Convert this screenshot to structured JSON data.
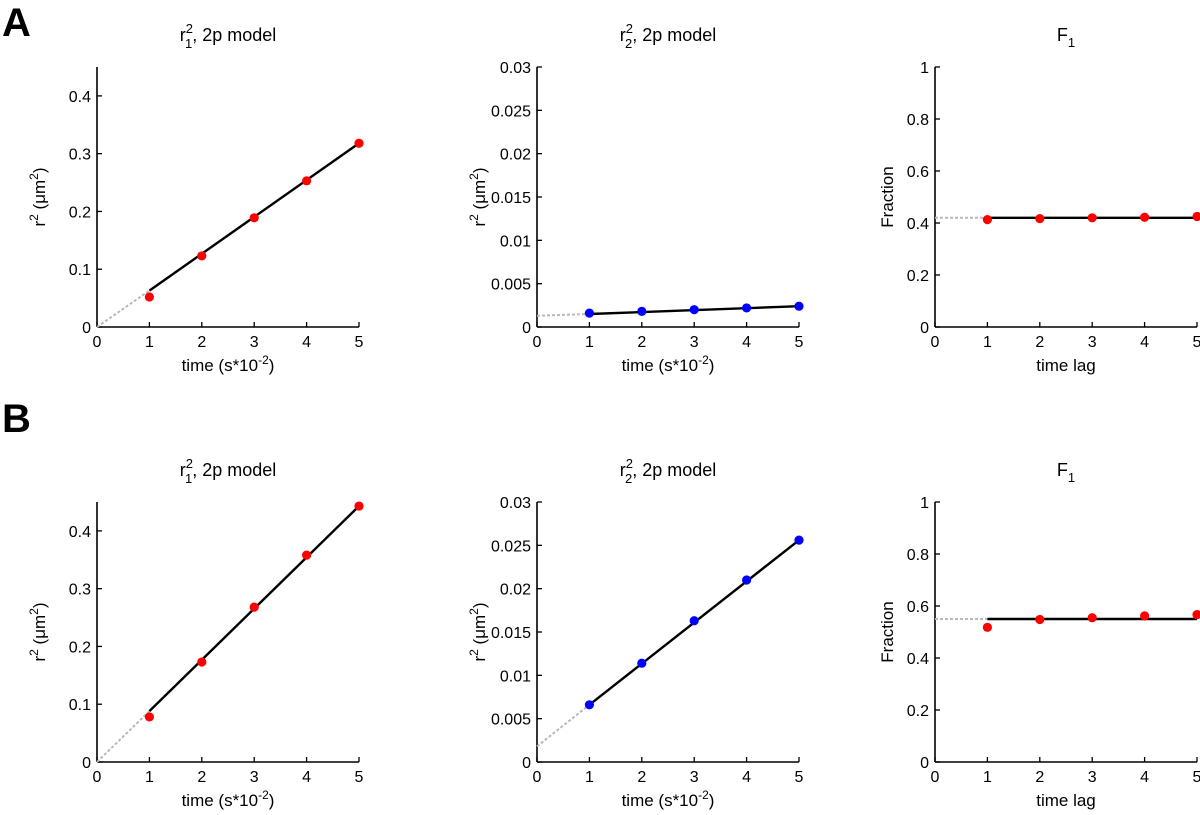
{
  "figure": {
    "panel_labels": [
      "A",
      "B"
    ]
  },
  "chart_data": [
    {
      "id": "A1",
      "row": "A",
      "type": "line",
      "title_base": "r",
      "title_sup": "2",
      "title_sub": "1",
      "title_rest": ", 2p model",
      "xlabel_text": "time (s*10",
      "xlabel_sup": "-2",
      "xlabel_end": ")",
      "ylabel_base": "r",
      "ylabel_sup": "2",
      "ylabel_mid": " (μm",
      "ylabel_sup2": "2",
      "ylabel_end": ")",
      "xlim": [
        0,
        5
      ],
      "ylim": [
        0,
        0.45
      ],
      "xticks": [
        0,
        1,
        2,
        3,
        4,
        5
      ],
      "xtick_labels": [
        "0",
        "1",
        "2",
        "3",
        "4",
        "5"
      ],
      "yticks": [
        0,
        0.1,
        0.2,
        0.3,
        0.4
      ],
      "ytick_labels": [
        "0",
        "0.1",
        "0.2",
        "0.3",
        "0.4"
      ],
      "points": {
        "x": [
          1,
          2,
          3,
          4,
          5
        ],
        "y": [
          0.052,
          0.123,
          0.189,
          0.253,
          0.318
        ],
        "color": "#ff0000"
      },
      "fit": {
        "x": [
          1,
          5
        ],
        "y": [
          0.063,
          0.318
        ]
      },
      "extrapolation": {
        "x": [
          0,
          1
        ],
        "y": [
          0,
          0.063
        ]
      }
    },
    {
      "id": "A2",
      "row": "A",
      "type": "line",
      "title_base": "r",
      "title_sup": "2",
      "title_sub": "2",
      "title_rest": ", 2p model",
      "xlabel_text": "time (s*10",
      "xlabel_sup": "-2",
      "xlabel_end": ")",
      "ylabel_base": "r",
      "ylabel_sup": "2",
      "ylabel_mid": " (μm",
      "ylabel_sup2": "2",
      "ylabel_end": ")",
      "xlim": [
        0,
        5
      ],
      "ylim": [
        0,
        0.03
      ],
      "xticks": [
        0,
        1,
        2,
        3,
        4,
        5
      ],
      "xtick_labels": [
        "0",
        "1",
        "2",
        "3",
        "4",
        "5"
      ],
      "yticks": [
        0,
        0.005,
        0.01,
        0.015,
        0.02,
        0.025,
        0.03
      ],
      "ytick_labels": [
        "0",
        "0.005",
        "0.01",
        "0.015",
        "0.02",
        "0.025",
        "0.03"
      ],
      "points": {
        "x": [
          1,
          2,
          3,
          4,
          5
        ],
        "y": [
          0.0016,
          0.0018,
          0.002,
          0.0022,
          0.0024
        ],
        "color": "#0000ff"
      },
      "fit": {
        "x": [
          1,
          5
        ],
        "y": [
          0.0015,
          0.0024
        ]
      },
      "extrapolation": {
        "x": [
          0,
          1
        ],
        "y": [
          0.0013,
          0.0015
        ]
      }
    },
    {
      "id": "A3",
      "row": "A",
      "type": "line",
      "title_base": "F",
      "title_sub": "1",
      "xlabel_text": "time lag",
      "ylabel_text": "Fraction",
      "xlim": [
        0,
        5
      ],
      "ylim": [
        0,
        1
      ],
      "xticks": [
        0,
        1,
        2,
        3,
        4,
        5
      ],
      "xtick_labels": [
        "0",
        "1",
        "2",
        "3",
        "4",
        "5"
      ],
      "yticks": [
        0,
        0.2,
        0.4,
        0.6,
        0.8,
        1
      ],
      "ytick_labels": [
        "0",
        "0.2",
        "0.4",
        "0.6",
        "0.8",
        "1"
      ],
      "points": {
        "x": [
          1,
          2,
          3,
          4,
          5
        ],
        "y": [
          0.413,
          0.417,
          0.42,
          0.422,
          0.425
        ],
        "color": "#ff0000"
      },
      "fit": {
        "x": [
          1,
          5
        ],
        "y": [
          0.42,
          0.42
        ]
      },
      "extrapolation": {
        "x": [
          0,
          1
        ],
        "y": [
          0.42,
          0.42
        ]
      }
    },
    {
      "id": "B1",
      "row": "B",
      "type": "line",
      "title_base": "r",
      "title_sup": "2",
      "title_sub": "1",
      "title_rest": ", 2p model",
      "xlabel_text": "time (s*10",
      "xlabel_sup": "-2",
      "xlabel_end": ")",
      "ylabel_base": "r",
      "ylabel_sup": "2",
      "ylabel_mid": " (μm",
      "ylabel_sup2": "2",
      "ylabel_end": ")",
      "xlim": [
        0,
        5
      ],
      "ylim": [
        0,
        0.45
      ],
      "xticks": [
        0,
        1,
        2,
        3,
        4,
        5
      ],
      "xtick_labels": [
        "0",
        "1",
        "2",
        "3",
        "4",
        "5"
      ],
      "yticks": [
        0,
        0.1,
        0.2,
        0.3,
        0.4
      ],
      "ytick_labels": [
        "0",
        "0.1",
        "0.2",
        "0.3",
        "0.4"
      ],
      "points": {
        "x": [
          1,
          2,
          3,
          4,
          5
        ],
        "y": [
          0.078,
          0.173,
          0.268,
          0.358,
          0.443
        ],
        "color": "#ff0000"
      },
      "fit": {
        "x": [
          1,
          5
        ],
        "y": [
          0.088,
          0.443
        ]
      },
      "extrapolation": {
        "x": [
          0,
          1
        ],
        "y": [
          0,
          0.088
        ]
      }
    },
    {
      "id": "B2",
      "row": "B",
      "type": "line",
      "title_base": "r",
      "title_sup": "2",
      "title_sub": "2",
      "title_rest": ", 2p model",
      "xlabel_text": "time (s*10",
      "xlabel_sup": "-2",
      "xlabel_end": ")",
      "ylabel_base": "r",
      "ylabel_sup": "2",
      "ylabel_mid": " (μm",
      "ylabel_sup2": "2",
      "ylabel_end": ")",
      "xlim": [
        0,
        5
      ],
      "ylim": [
        0,
        0.03
      ],
      "xticks": [
        0,
        1,
        2,
        3,
        4,
        5
      ],
      "xtick_labels": [
        "0",
        "1",
        "2",
        "3",
        "4",
        "5"
      ],
      "yticks": [
        0,
        0.005,
        0.01,
        0.015,
        0.02,
        0.025,
        0.03
      ],
      "ytick_labels": [
        "0",
        "0.005",
        "0.01",
        "0.015",
        "0.02",
        "0.025",
        "0.03"
      ],
      "points": {
        "x": [
          1,
          2,
          3,
          4,
          5
        ],
        "y": [
          0.0066,
          0.0114,
          0.0163,
          0.021,
          0.0256
        ],
        "color": "#0000ff"
      },
      "fit": {
        "x": [
          1,
          5
        ],
        "y": [
          0.0066,
          0.0256
        ]
      },
      "extrapolation": {
        "x": [
          0,
          1
        ],
        "y": [
          0.0018,
          0.0066
        ]
      }
    },
    {
      "id": "B3",
      "row": "B",
      "type": "line",
      "title_base": "F",
      "title_sub": "1",
      "xlabel_text": "time lag",
      "ylabel_text": "Fraction",
      "xlim": [
        0,
        5
      ],
      "ylim": [
        0,
        1
      ],
      "xticks": [
        0,
        1,
        2,
        3,
        4,
        5
      ],
      "xtick_labels": [
        "0",
        "1",
        "2",
        "3",
        "4",
        "5"
      ],
      "yticks": [
        0,
        0.2,
        0.4,
        0.6,
        0.8,
        1
      ],
      "ytick_labels": [
        "0",
        "0.2",
        "0.4",
        "0.6",
        "0.8",
        "1"
      ],
      "points": {
        "x": [
          1,
          2,
          3,
          4,
          5
        ],
        "y": [
          0.518,
          0.548,
          0.555,
          0.562,
          0.567
        ],
        "color": "#ff0000"
      },
      "fit": {
        "x": [
          1,
          5
        ],
        "y": [
          0.55,
          0.55
        ]
      },
      "extrapolation": {
        "x": [
          0,
          1
        ],
        "y": [
          0.55,
          0.55
        ]
      }
    }
  ]
}
